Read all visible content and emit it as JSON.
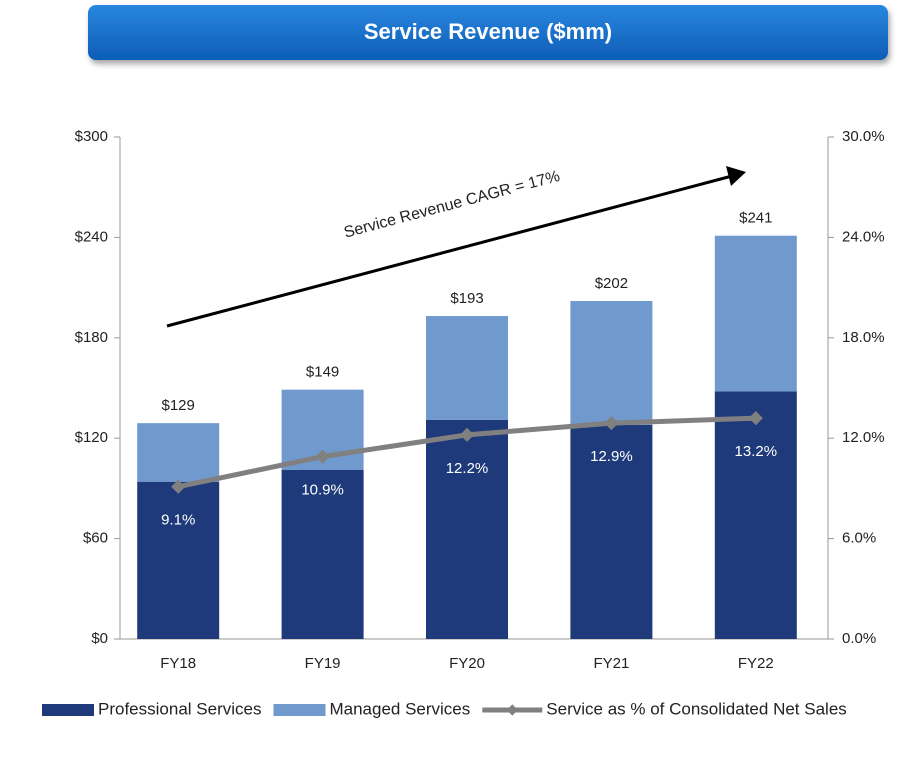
{
  "chart_data": {
    "type": "bar",
    "stacked": true,
    "title": "Service Revenue ($mm)",
    "annotation": "Service Revenue CAGR = 17%",
    "categories": [
      "FY18",
      "FY19",
      "FY20",
      "FY21",
      "FY22"
    ],
    "series": [
      {
        "name": "Professional Services",
        "color": "#1f3a7a",
        "values": [
          94,
          101,
          131,
          128,
          148
        ]
      },
      {
        "name": "Managed Services",
        "color": "#7099cd",
        "values": [
          35,
          48,
          62,
          74,
          93
        ]
      },
      {
        "name": "Service as % of Consolidated Net Sales",
        "color": "#808080",
        "type": "line",
        "axis": "y2",
        "values": [
          9.1,
          10.9,
          12.2,
          12.9,
          13.2
        ],
        "value_labels": [
          "9.1%",
          "10.9%",
          "12.2%",
          "12.9%",
          "13.2%"
        ]
      }
    ],
    "totals": {
      "values": [
        129,
        149,
        193,
        202,
        241
      ],
      "value_labels": [
        "$129",
        "$149",
        "$193",
        "$202",
        "$241"
      ]
    },
    "ylim": [
      0,
      300
    ],
    "yticks": [
      {
        "value": 0,
        "label": "$0"
      },
      {
        "value": 60,
        "label": "$60"
      },
      {
        "value": 120,
        "label": "$120"
      },
      {
        "value": 180,
        "label": "$180"
      },
      {
        "value": 240,
        "label": "$240"
      },
      {
        "value": 300,
        "label": "$300"
      }
    ],
    "y2lim": [
      0,
      30
    ],
    "y2ticks": [
      {
        "value": 0,
        "label": "0.0%"
      },
      {
        "value": 6,
        "label": "6.0%"
      },
      {
        "value": 12,
        "label": "12.0%"
      },
      {
        "value": 18,
        "label": "18.0%"
      },
      {
        "value": 24,
        "label": "24.0%"
      },
      {
        "value": 30,
        "label": "30.0%"
      }
    ],
    "legend": "bottom"
  }
}
